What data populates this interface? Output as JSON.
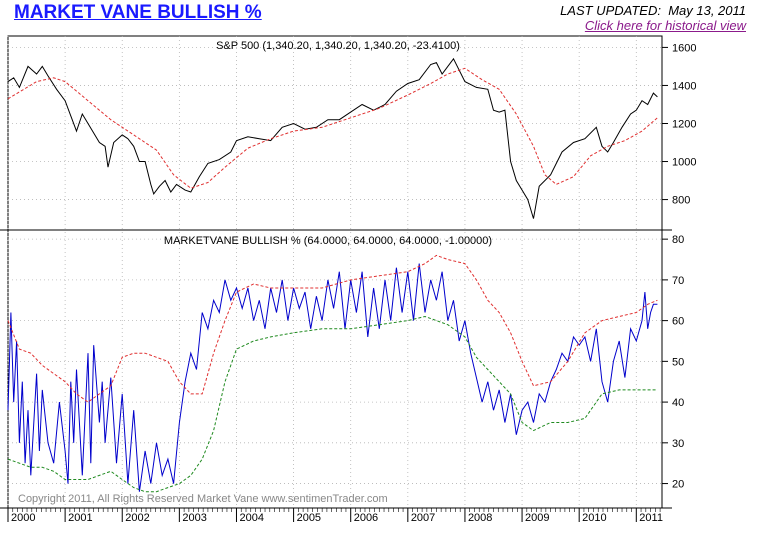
{
  "header": {
    "title": "MARKET VANE BULLISH %",
    "updated_label": "LAST UPDATED:",
    "updated_date": "May 13, 2011",
    "history_link": "Click here for historical view"
  },
  "colors": {
    "sp500": "#000000",
    "bullish": "#0000cc",
    "upper_band": "#e03030",
    "lower_band": "#1f8a1f",
    "grid": "#b4b4b4"
  },
  "footer": {
    "copyright": "Copyright 2011, All Rights Reserved  Market Vane  www.sentimenTrader.com"
  },
  "chart_data": [
    {
      "type": "line",
      "title": "S&P 500 (1,340.20, 1,340.20, 1,340.20, -23.4100)",
      "ylim": [
        640,
        1660
      ],
      "yticks": [
        800,
        1000,
        1200,
        1400,
        1600
      ],
      "xlim": [
        2000.0,
        2011.45
      ],
      "years": [
        "2000",
        "2001",
        "2002",
        "2003",
        "2004",
        "2005",
        "2006",
        "2007",
        "2008",
        "2009",
        "2010",
        "2011"
      ],
      "series": [
        {
          "role": "price",
          "x": [
            2000.0,
            2000.1,
            2000.2,
            2000.35,
            2000.5,
            2000.6,
            2000.7,
            2000.85,
            2001.0,
            2001.1,
            2001.2,
            2001.3,
            2001.4,
            2001.5,
            2001.6,
            2001.7,
            2001.75,
            2001.85,
            2002.0,
            2002.1,
            2002.2,
            2002.3,
            2002.4,
            2002.5,
            2002.55,
            2002.65,
            2002.75,
            2002.85,
            2002.95,
            2003.1,
            2003.2,
            2003.35,
            2003.5,
            2003.7,
            2003.9,
            2004.0,
            2004.2,
            2004.4,
            2004.6,
            2004.8,
            2005.0,
            2005.2,
            2005.4,
            2005.6,
            2005.8,
            2006.0,
            2006.2,
            2006.4,
            2006.6,
            2006.8,
            2007.0,
            2007.2,
            2007.4,
            2007.5,
            2007.6,
            2007.8,
            2008.0,
            2008.2,
            2008.4,
            2008.5,
            2008.6,
            2008.7,
            2008.8,
            2008.9,
            2009.0,
            2009.1,
            2009.2,
            2009.3,
            2009.5,
            2009.7,
            2009.9,
            2010.1,
            2010.3,
            2010.4,
            2010.5,
            2010.6,
            2010.75,
            2010.9,
            2011.0,
            2011.1,
            2011.2,
            2011.3,
            2011.37
          ],
          "values": [
            1420,
            1440,
            1390,
            1500,
            1460,
            1500,
            1450,
            1380,
            1320,
            1240,
            1160,
            1250,
            1200,
            1150,
            1100,
            1080,
            970,
            1100,
            1140,
            1120,
            1080,
            1000,
            1000,
            880,
            830,
            870,
            900,
            840,
            880,
            850,
            840,
            920,
            990,
            1010,
            1050,
            1110,
            1130,
            1120,
            1110,
            1180,
            1200,
            1170,
            1180,
            1220,
            1220,
            1260,
            1300,
            1270,
            1300,
            1370,
            1410,
            1430,
            1510,
            1520,
            1460,
            1540,
            1420,
            1390,
            1380,
            1270,
            1260,
            1270,
            1000,
            900,
            850,
            800,
            700,
            870,
            930,
            1050,
            1100,
            1120,
            1180,
            1080,
            1050,
            1100,
            1180,
            1250,
            1270,
            1320,
            1300,
            1360,
            1340
          ]
        },
        {
          "role": "moving average",
          "x": [
            2000.0,
            2000.5,
            2000.8,
            2001.0,
            2001.4,
            2001.8,
            2002.2,
            2002.6,
            2002.9,
            2003.2,
            2003.5,
            2003.8,
            2004.2,
            2004.6,
            2005.0,
            2005.5,
            2006.0,
            2006.5,
            2007.0,
            2007.4,
            2007.7,
            2008.0,
            2008.3,
            2008.6,
            2008.9,
            2009.2,
            2009.4,
            2009.6,
            2009.9,
            2010.2,
            2010.5,
            2010.8,
            2011.1,
            2011.37
          ],
          "values": [
            1330,
            1420,
            1440,
            1420,
            1320,
            1220,
            1140,
            1060,
            930,
            860,
            890,
            970,
            1070,
            1120,
            1160,
            1180,
            1230,
            1280,
            1350,
            1410,
            1460,
            1490,
            1430,
            1380,
            1250,
            1080,
            930,
            880,
            920,
            1030,
            1080,
            1110,
            1160,
            1230
          ]
        }
      ]
    },
    {
      "type": "line",
      "title": "MARKETVANE BULLISH % (64.0000, 64.0000, 64.0000, -1.00000)",
      "ylim": [
        14,
        82
      ],
      "yticks": [
        20,
        30,
        40,
        50,
        60,
        70,
        80
      ],
      "xlim": [
        2000.0,
        2011.45
      ],
      "years": [
        "2000",
        "2001",
        "2002",
        "2003",
        "2004",
        "2005",
        "2006",
        "2007",
        "2008",
        "2009",
        "2010",
        "2011"
      ],
      "series": [
        {
          "role": "bullish %",
          "x": [
            2000.0,
            2000.05,
            2000.1,
            2000.15,
            2000.2,
            2000.25,
            2000.3,
            2000.35,
            2000.4,
            2000.5,
            2000.55,
            2000.6,
            2000.7,
            2000.8,
            2000.9,
            2001.0,
            2001.05,
            2001.1,
            2001.15,
            2001.2,
            2001.3,
            2001.4,
            2001.45,
            2001.5,
            2001.6,
            2001.65,
            2001.7,
            2001.8,
            2001.9,
            2002.0,
            2002.1,
            2002.2,
            2002.3,
            2002.4,
            2002.5,
            2002.6,
            2002.7,
            2002.8,
            2002.9,
            2003.0,
            2003.1,
            2003.2,
            2003.3,
            2003.4,
            2003.5,
            2003.6,
            2003.7,
            2003.8,
            2003.9,
            2004.0,
            2004.1,
            2004.2,
            2004.3,
            2004.4,
            2004.5,
            2004.6,
            2004.7,
            2004.8,
            2004.9,
            2005.0,
            2005.1,
            2005.2,
            2005.3,
            2005.4,
            2005.5,
            2005.6,
            2005.7,
            2005.8,
            2005.9,
            2006.0,
            2006.1,
            2006.2,
            2006.3,
            2006.4,
            2006.5,
            2006.6,
            2006.7,
            2006.8,
            2006.9,
            2007.0,
            2007.1,
            2007.2,
            2007.3,
            2007.4,
            2007.5,
            2007.6,
            2007.7,
            2007.8,
            2007.9,
            2008.0,
            2008.1,
            2008.2,
            2008.3,
            2008.4,
            2008.5,
            2008.6,
            2008.7,
            2008.8,
            2008.9,
            2009.0,
            2009.1,
            2009.2,
            2009.3,
            2009.4,
            2009.5,
            2009.6,
            2009.7,
            2009.8,
            2009.9,
            2010.0,
            2010.1,
            2010.2,
            2010.3,
            2010.4,
            2010.5,
            2010.6,
            2010.7,
            2010.8,
            2010.9,
            2011.0,
            2011.1,
            2011.15,
            2011.2,
            2011.25,
            2011.3,
            2011.37
          ],
          "values": [
            38,
            62,
            40,
            55,
            30,
            45,
            25,
            38,
            22,
            47,
            28,
            43,
            30,
            25,
            40,
            28,
            20,
            45,
            30,
            48,
            22,
            52,
            25,
            54,
            35,
            45,
            30,
            46,
            25,
            42,
            20,
            38,
            18,
            28,
            20,
            30,
            22,
            26,
            20,
            35,
            45,
            52,
            48,
            62,
            58,
            65,
            62,
            70,
            65,
            68,
            63,
            68,
            60,
            65,
            58,
            68,
            62,
            70,
            60,
            68,
            63,
            67,
            58,
            66,
            60,
            70,
            63,
            72,
            58,
            70,
            62,
            72,
            56,
            68,
            58,
            70,
            60,
            73,
            62,
            72,
            60,
            74,
            62,
            70,
            65,
            72,
            60,
            65,
            55,
            60,
            52,
            46,
            40,
            45,
            38,
            43,
            35,
            42,
            32,
            38,
            40,
            35,
            42,
            40,
            45,
            48,
            52,
            50,
            56,
            54,
            56,
            50,
            58,
            45,
            40,
            50,
            55,
            46,
            58,
            55,
            60,
            67,
            58,
            62,
            64,
            64
          ]
        },
        {
          "role": "upper band",
          "x": [
            2000.0,
            2000.2,
            2000.4,
            2000.6,
            2000.8,
            2001.0,
            2001.2,
            2001.4,
            2001.6,
            2001.8,
            2002.0,
            2002.2,
            2002.4,
            2002.6,
            2002.8,
            2003.0,
            2003.2,
            2003.4,
            2003.6,
            2003.8,
            2004.0,
            2004.3,
            2004.6,
            2005.0,
            2005.5,
            2006.0,
            2006.5,
            2007.0,
            2007.3,
            2007.5,
            2007.7,
            2008.0,
            2008.2,
            2008.4,
            2008.6,
            2008.8,
            2009.0,
            2009.2,
            2009.5,
            2009.8,
            2010.1,
            2010.4,
            2010.7,
            2011.0,
            2011.2,
            2011.37
          ],
          "values": [
            60,
            53,
            52,
            49,
            47,
            45,
            42,
            40,
            42,
            44,
            51,
            52,
            52,
            51,
            50,
            45,
            42,
            42,
            52,
            60,
            67,
            69,
            68,
            68,
            68,
            70,
            71,
            72,
            74,
            76,
            75,
            74,
            70,
            65,
            62,
            57,
            50,
            44,
            45,
            50,
            57,
            60,
            61,
            62,
            64,
            65
          ]
        },
        {
          "role": "lower band",
          "x": [
            2000.0,
            2000.2,
            2000.4,
            2000.6,
            2000.8,
            2001.0,
            2001.2,
            2001.4,
            2001.6,
            2001.8,
            2002.0,
            2002.2,
            2002.4,
            2002.6,
            2002.8,
            2003.0,
            2003.2,
            2003.4,
            2003.6,
            2003.8,
            2004.0,
            2004.3,
            2004.6,
            2005.0,
            2005.5,
            2006.0,
            2006.5,
            2007.0,
            2007.3,
            2007.5,
            2007.7,
            2008.0,
            2008.2,
            2008.4,
            2008.6,
            2008.8,
            2009.0,
            2009.2,
            2009.5,
            2009.8,
            2010.1,
            2010.4,
            2010.7,
            2011.0,
            2011.2,
            2011.37
          ],
          "values": [
            26,
            25,
            24,
            24,
            23,
            21,
            21,
            21,
            22,
            23,
            21,
            19,
            18,
            18,
            19,
            20,
            22,
            26,
            33,
            45,
            53,
            55,
            56,
            57,
            58,
            58,
            59,
            60,
            61,
            60,
            59,
            56,
            51,
            48,
            45,
            42,
            35,
            33,
            35,
            35,
            36,
            42,
            43,
            43,
            43,
            43
          ]
        }
      ]
    }
  ]
}
